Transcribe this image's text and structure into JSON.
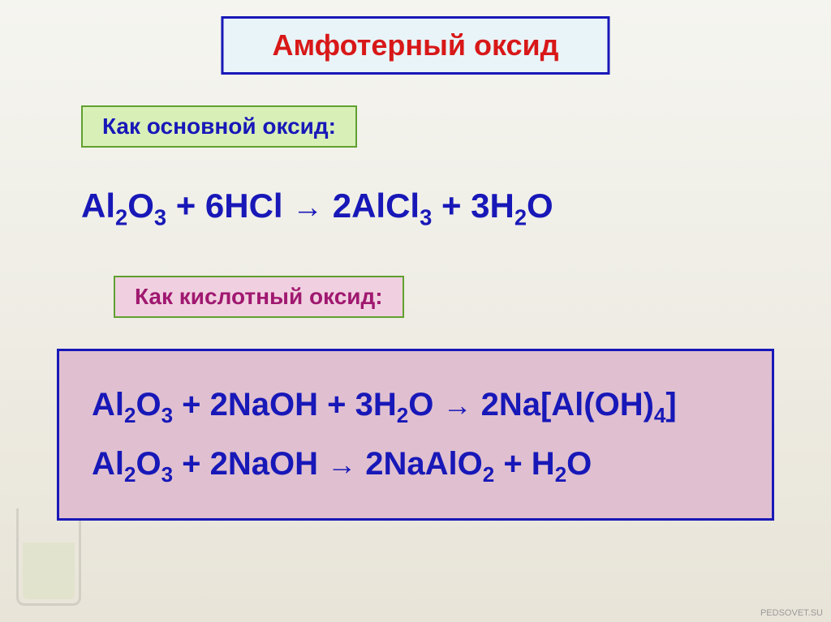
{
  "title": {
    "text": "Амфотерный оксид",
    "color": "#d81818",
    "bg_color": "#e8f4f8",
    "border_color": "#1818b8",
    "fontsize": 36
  },
  "subtitle_basic": {
    "text": "Как основной оксид:",
    "color": "#1818b8",
    "bg_color": "#d8f0b8",
    "border_color": "#60a030",
    "fontsize": 28
  },
  "subtitle_acidic": {
    "text": "Как кислотный оксид:",
    "color": "#a01870",
    "bg_color": "#f0d0e0",
    "border_color": "#60a030",
    "fontsize": 28
  },
  "equations": {
    "color": "#1818b8",
    "fontsize": 42,
    "eq1_prefix": "Al",
    "eq1_s1": "2",
    "eq1_t2": "O",
    "eq1_s2": "3",
    "eq1_t3": " + 6HCl ",
    "eq1_arrow": "→",
    "eq1_t4": " 2AlCl",
    "eq1_s3": "3",
    "eq1_t5": " + 3H",
    "eq1_s4": "2",
    "eq1_t6": "O",
    "eq2_prefix": "Al",
    "eq2_s1": "2",
    "eq2_t2": "O",
    "eq2_s2": "3",
    "eq2_t3": " + 2NaOH + 3H",
    "eq2_s3": "2",
    "eq2_t4": "O ",
    "eq2_arrow": "→",
    "eq2_t5": " 2Na[Al(OH)",
    "eq2_s4": "4",
    "eq2_t6": "]",
    "eq3_prefix": "Al",
    "eq3_s1": "2",
    "eq3_t2": "O",
    "eq3_s2": "3",
    "eq3_t3": " + 2NaOH ",
    "eq3_arrow": "→",
    "eq3_t4": " 2NaAlO",
    "eq3_s3": "2",
    "eq3_t5": " + H",
    "eq3_s4": "2",
    "eq3_t6": "O"
  },
  "block": {
    "bg_color": "#e0c0d0",
    "border_color": "#1818b8"
  },
  "watermark": "PEDSOVET.SU",
  "background": {
    "gradient_top": "#f5f5f0",
    "gradient_bottom": "#e8e4d8"
  }
}
